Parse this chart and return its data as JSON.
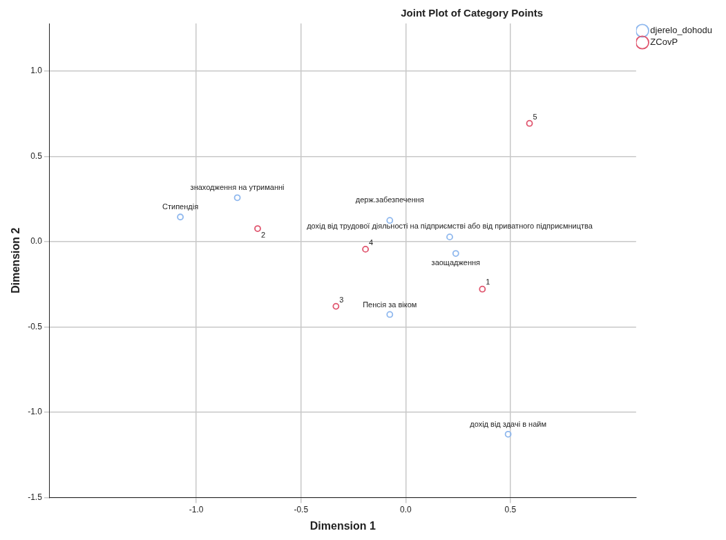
{
  "chart_data": {
    "type": "scatter",
    "title": "Joint Plot of Category Points",
    "xlabel": "Dimension 1",
    "ylabel": "Dimension 2",
    "xlim": [
      -1.7,
      1.1
    ],
    "ylim": [
      -1.5,
      1.28
    ],
    "xticks": [
      {
        "value": -1,
        "label": "-1.0"
      },
      {
        "value": -0.5,
        "label": "-0.5"
      },
      {
        "value": 0,
        "label": "0.0"
      },
      {
        "value": 0.5,
        "label": "0.5"
      }
    ],
    "yticks": [
      {
        "value": -1.5,
        "label": "-1.5"
      },
      {
        "value": -1,
        "label": "-1.0"
      },
      {
        "value": -0.5,
        "label": "-0.5"
      },
      {
        "value": 0,
        "label": "0.0"
      },
      {
        "value": 0.5,
        "label": "0.5"
      },
      {
        "value": 1,
        "label": "1.0"
      }
    ],
    "grid": true,
    "legend": "top right",
    "marker": "circle",
    "series": [
      {
        "name": "djerelo_dohodu",
        "color": "#8fb8ee",
        "x": [
          -1.076,
          -0.804,
          -0.076,
          0.21,
          0.239,
          -0.076,
          0.489
        ],
        "values": [
          0.145,
          0.258,
          0.125,
          0.028,
          -0.069,
          -0.427,
          -1.129
        ]
      },
      {
        "name": "ZCovP",
        "color": "#e0556e",
        "x": [
          0.366,
          -0.707,
          -0.333,
          -0.192,
          0.591
        ],
        "values": [
          -0.278,
          0.077,
          -0.379,
          -0.044,
          0.694
        ]
      }
    ],
    "annotations": [
      {
        "text": "Стипендія",
        "x": -1.076,
        "y": 0.145
      },
      {
        "text": "знаходження на утриманні",
        "x": -0.804,
        "y": 0.258
      },
      {
        "text": "держ.забезпечення",
        "x": -0.076,
        "y": 0.125
      },
      {
        "text": "дохід від трудової діяльності на підприємстві або від приватного підприємництва",
        "x": 0.21,
        "y": 0.028
      },
      {
        "text": "заощадження",
        "x": 0.239,
        "y": -0.069
      },
      {
        "text": "Пенсія за віком",
        "x": -0.076,
        "y": -0.427
      },
      {
        "text": "дохід від здачі в найм",
        "x": 0.489,
        "y": -1.129
      },
      {
        "text": "1",
        "x": 0.366,
        "y": -0.278
      },
      {
        "text": "2",
        "x": -0.707,
        "y": 0.077
      },
      {
        "text": "3",
        "x": -0.333,
        "y": -0.379
      },
      {
        "text": "4",
        "x": -0.192,
        "y": -0.044
      },
      {
        "text": "5",
        "x": 0.591,
        "y": 0.694
      }
    ]
  }
}
